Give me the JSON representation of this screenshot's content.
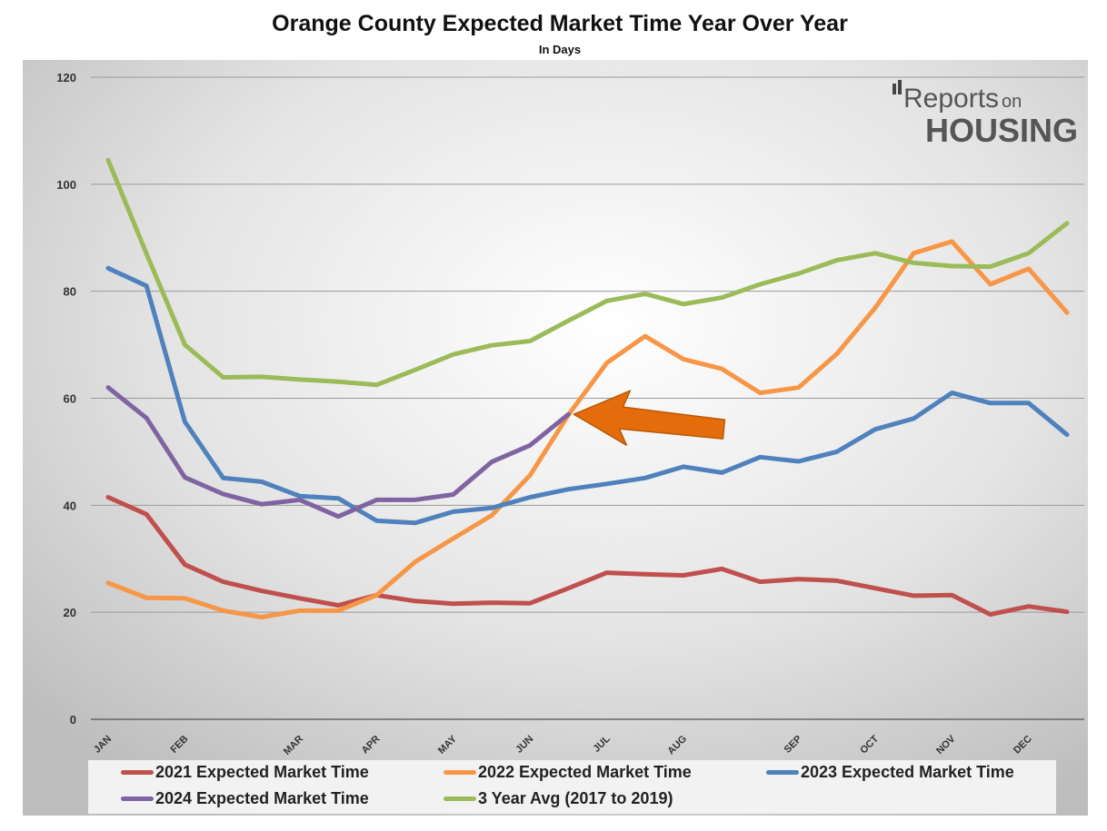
{
  "title": "Orange County Expected Market Time Year Over Year",
  "subtitle": "In Days",
  "logo": {
    "line1": "Reports",
    "line1_small": "on",
    "line2": "HOUSING"
  },
  "colors": {
    "2021": "#c0504d",
    "2022": "#f79646",
    "2023": "#4f81bd",
    "2024": "#8064a2",
    "avg": "#9bbb59",
    "arrow": "#e46c0a"
  },
  "chart_data": {
    "type": "line",
    "ylim": [
      0,
      120
    ],
    "yticks": [
      0,
      20,
      40,
      60,
      80,
      100,
      120
    ],
    "grid": true,
    "legend_position": "bottom",
    "x_tick_labels": [
      "JAN",
      "FEB",
      "MAR",
      "APR",
      "MAY",
      "JUN",
      "JUL",
      "AUG",
      "SEP",
      "OCT",
      "NOV",
      "DEC"
    ],
    "x_tick_index": [
      0,
      2,
      5,
      7,
      9,
      11,
      13,
      15,
      18,
      20,
      22,
      24
    ],
    "points_per_series": 26,
    "series": [
      {
        "name": "2021 Expected Market Time",
        "key": "2021",
        "values": [
          41.5,
          38.3,
          28.9,
          25.7,
          24.0,
          22.6,
          21.3,
          23.2,
          22.1,
          21.6,
          21.8,
          21.7,
          24.5,
          27.4,
          27.1,
          26.9,
          28.1,
          25.7,
          26.2,
          25.9,
          24.5,
          23.1,
          23.2,
          19.6,
          21.1,
          20.1
        ]
      },
      {
        "name": "2022 Expected Market Time",
        "key": "2022",
        "values": [
          25.5,
          22.7,
          22.6,
          20.3,
          19.1,
          20.3,
          20.3,
          23.2,
          29.4,
          33.8,
          38.1,
          45.6,
          56.9,
          66.6,
          71.6,
          67.3,
          65.5,
          61.0,
          62.0,
          68.3,
          76.9,
          87.1,
          89.3,
          81.3,
          84.2,
          76.0
        ]
      },
      {
        "name": "2023 Expected Market Time",
        "key": "2023",
        "values": [
          84.3,
          81.0,
          55.6,
          45.1,
          44.4,
          41.7,
          41.3,
          37.1,
          36.7,
          38.8,
          39.5,
          41.5,
          43.0,
          44.0,
          45.1,
          47.2,
          46.1,
          49.0,
          48.2,
          50.0,
          54.2,
          56.2,
          61.0,
          59.1,
          59.1,
          53.2
        ]
      },
      {
        "name": "2024 Expected Market Time",
        "key": "2024",
        "values": [
          62.0,
          56.3,
          45.2,
          42.1,
          40.2,
          41.0,
          37.9,
          41.0,
          41.0,
          42.0,
          48.1,
          51.2,
          57.0
        ]
      },
      {
        "name": "3 Year Avg (2017 to 2019)",
        "key": "avg",
        "values": [
          104.5,
          87.0,
          70.0,
          63.9,
          64.0,
          63.5,
          63.1,
          62.5,
          65.3,
          68.2,
          69.9,
          70.7,
          74.5,
          78.2,
          79.5,
          77.6,
          78.8,
          81.3,
          83.3,
          85.8,
          87.1,
          85.3,
          84.7,
          84.6,
          87.1,
          92.7
        ]
      }
    ],
    "annotation": {
      "type": "arrow",
      "points_to_series": "2024",
      "points_to_index": 12
    }
  }
}
